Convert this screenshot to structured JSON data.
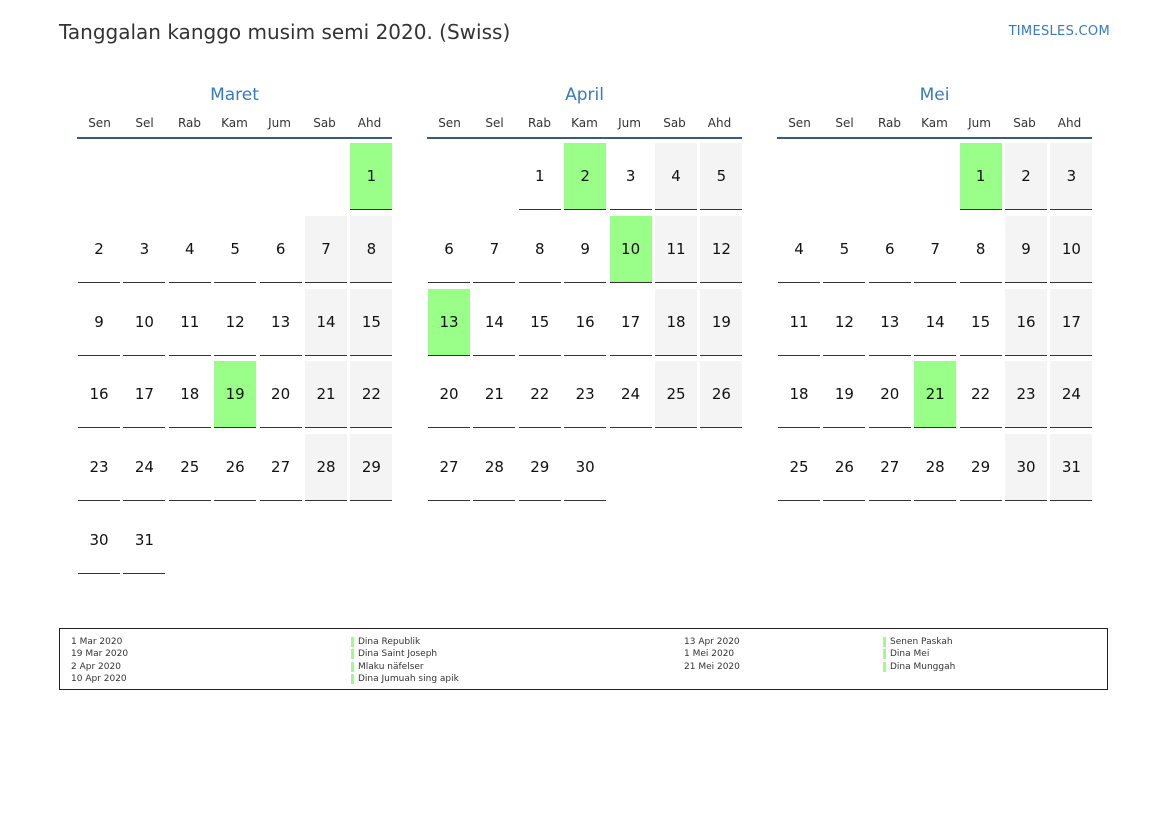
{
  "title": "Tanggalan kanggo musim semi 2020. (Swiss)",
  "brand": "TIMESLES.COM",
  "weekdays": [
    "Sen",
    "Sel",
    "Rab",
    "Kam",
    "Jum",
    "Sab",
    "Ahd"
  ],
  "colors": {
    "holiday": "#99ff88",
    "weekend": "#f4f4f4",
    "accent": "#3a7ab5"
  },
  "months": [
    {
      "name": "Maret",
      "start_offset": 6,
      "days": 31,
      "holidays": [
        1,
        19
      ]
    },
    {
      "name": "April",
      "start_offset": 2,
      "days": 30,
      "holidays": [
        2,
        10,
        13
      ]
    },
    {
      "name": "Mei",
      "start_offset": 4,
      "days": 31,
      "holidays": [
        1,
        21
      ]
    }
  ],
  "legend": {
    "left_dates": [
      "1 Mar 2020",
      "19 Mar 2020",
      "2 Apr 2020",
      "10 Apr 2020"
    ],
    "left_names": [
      "Dina Republik",
      "Dina Saint Joseph",
      "Mlaku näfelser",
      "Dina Jumuah sing apik"
    ],
    "right_dates": [
      "13 Apr 2020",
      "1 Mei 2020",
      "21 Mei 2020"
    ],
    "right_names": [
      "Senen Paskah",
      "Dina Mei",
      "Dina Munggah"
    ]
  }
}
